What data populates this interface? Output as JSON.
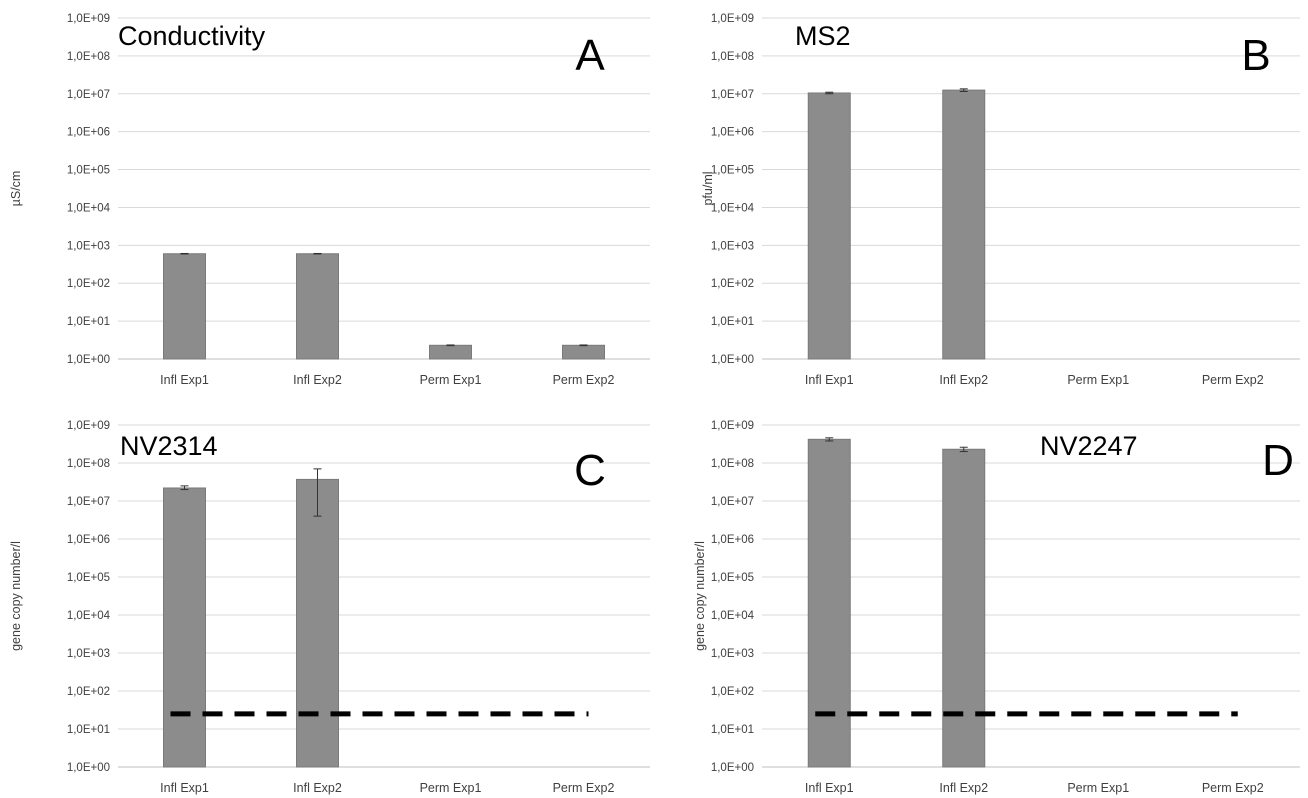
{
  "figure": {
    "panels": [
      {
        "id": "A",
        "title": "Conductivity",
        "panel_letter": "A",
        "ylabel": "µS/cm"
      },
      {
        "id": "B",
        "title": "MS2",
        "panel_letter": "B",
        "ylabel": "pfu/ml"
      },
      {
        "id": "C",
        "title": "NV2314",
        "panel_letter": "C",
        "ylabel": "gene copy number/l"
      },
      {
        "id": "D",
        "title": "NV2247",
        "panel_letter": "D",
        "ylabel": "gene copy number/l"
      }
    ]
  },
  "colors": {
    "bar": "#8c8c8c",
    "bar_stroke": "#7a7a7a",
    "grid": "#d9d9d9",
    "axis": "#bfbfbf",
    "text": "#000000",
    "tick_text": "#404040",
    "dashed": "#000000"
  },
  "chart_data": [
    {
      "panel": "A",
      "type": "bar",
      "title": "Conductivity",
      "ylabel": "µS/cm",
      "xlabel": "",
      "yscale": "log",
      "ylim": [
        1,
        1000000000
      ],
      "ytick_labels": [
        "1,0E+00",
        "1,0E+01",
        "1,0E+02",
        "1,0E+03",
        "1,0E+04",
        "1,0E+05",
        "1,0E+06",
        "1,0E+07",
        "1,0E+08",
        "1,0E+09"
      ],
      "categories": [
        "Infl Exp1",
        "Infl Exp2",
        "Perm Exp1",
        "Perm Exp2"
      ],
      "values": [
        600,
        600,
        2.3,
        2.3
      ],
      "errors": [
        [
          590,
          610
        ],
        [
          590,
          610
        ],
        [
          2.25,
          2.35
        ],
        [
          2.25,
          2.35
        ]
      ],
      "grid": true,
      "legend": "none"
    },
    {
      "panel": "B",
      "type": "bar",
      "title": "MS2",
      "ylabel": "pfu/ml",
      "xlabel": "",
      "yscale": "log",
      "ylim": [
        1,
        1000000000
      ],
      "ytick_labels": [
        "1,0E+00",
        "1,0E+01",
        "1,0E+02",
        "1,0E+03",
        "1,0E+04",
        "1,0E+05",
        "1,0E+06",
        "1,0E+07",
        "1,0E+08",
        "1,0E+09"
      ],
      "categories": [
        "Infl Exp1",
        "Infl Exp2",
        "Perm Exp1",
        "Perm Exp2"
      ],
      "values": [
        10500000,
        12500000,
        null,
        null
      ],
      "errors": [
        [
          10000000,
          11000000
        ],
        [
          11500000,
          13500000
        ],
        null,
        null
      ],
      "grid": true,
      "legend": "none"
    },
    {
      "panel": "C",
      "type": "bar",
      "title": "NV2314",
      "ylabel": "gene copy number/l",
      "xlabel": "",
      "yscale": "log",
      "ylim": [
        1,
        1000000000
      ],
      "ytick_labels": [
        "1,0E+00",
        "1,0E+01",
        "1,0E+02",
        "1,0E+03",
        "1,0E+04",
        "1,0E+05",
        "1,0E+06",
        "1,0E+07",
        "1,0E+08",
        "1,0E+09"
      ],
      "categories": [
        "Infl Exp1",
        "Infl Exp2",
        "Perm Exp1",
        "Perm Exp2"
      ],
      "values": [
        22000000,
        37000000,
        null,
        null
      ],
      "errors": [
        [
          20000000,
          25000000
        ],
        [
          4000000,
          70000000
        ],
        null,
        null
      ],
      "reference_line": {
        "value": 25,
        "style": "dashed"
      },
      "grid": true,
      "legend": "none"
    },
    {
      "panel": "D",
      "type": "bar",
      "title": "NV2247",
      "ylabel": "gene copy number/l",
      "xlabel": "",
      "yscale": "log",
      "ylim": [
        1,
        1000000000
      ],
      "ytick_labels": [
        "1,0E+00",
        "1,0E+01",
        "1,0E+02",
        "1,0E+03",
        "1,0E+04",
        "1,0E+05",
        "1,0E+06",
        "1,0E+07",
        "1,0E+08",
        "1,0E+09"
      ],
      "categories": [
        "Infl Exp1",
        "Infl Exp2",
        "Perm Exp1",
        "Perm Exp2"
      ],
      "values": [
        420000000,
        230000000,
        null,
        null
      ],
      "errors": [
        [
          380000000,
          460000000
        ],
        [
          200000000,
          260000000
        ],
        null,
        null
      ],
      "reference_line": {
        "value": 25,
        "style": "dashed"
      },
      "grid": true,
      "legend": "none"
    }
  ]
}
